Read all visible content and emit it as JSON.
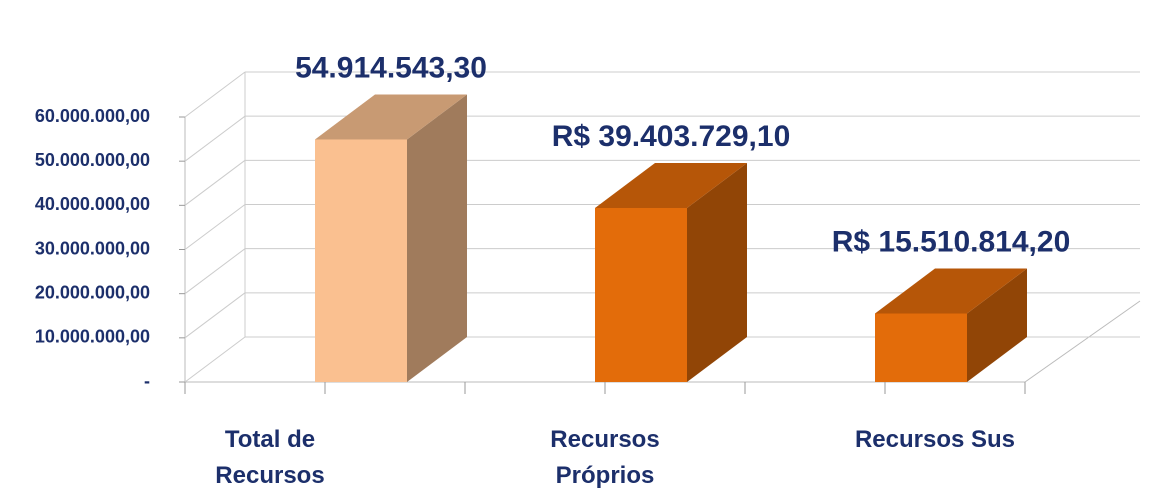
{
  "chart_data": {
    "type": "bar3d",
    "categories": [
      "Total de Recursos",
      "Recursos Próprios",
      "Recursos Sus"
    ],
    "values": [
      54914543.3,
      39403729.1,
      15510814.2
    ],
    "value_labels": [
      "54.914.543,30",
      "R$ 39.403.729,10",
      "R$ 15.510.814,20"
    ],
    "colors": [
      "#fac090",
      "#e36c0a",
      "#e36c0a"
    ],
    "ylim": [
      0,
      60000000
    ],
    "yticks": [
      {
        "value": 0,
        "label": "-"
      },
      {
        "value": 10000000,
        "label": "10.000.000,00"
      },
      {
        "value": 20000000,
        "label": "20.000.000,00"
      },
      {
        "value": 30000000,
        "label": "30.000.000,00"
      },
      {
        "value": 40000000,
        "label": "40.000.000,00"
      },
      {
        "value": 50000000,
        "label": "50.000.000,00"
      },
      {
        "value": 60000000,
        "label": "60.000.000,00"
      }
    ],
    "grid": true
  }
}
